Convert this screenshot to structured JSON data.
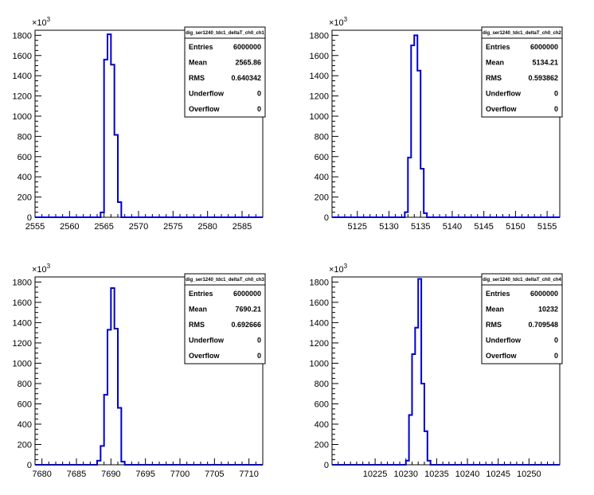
{
  "chart_data": [
    {
      "type": "bar",
      "name": "dig_ser1240_tdc1_deltaT_ch0_ch1",
      "bin_edges": [
        2564,
        2564.5,
        2565,
        2565.5,
        2566,
        2566.5,
        2567,
        2567.5
      ],
      "values": [
        0.2,
        48,
        1560,
        1810,
        1510,
        815,
        150
      ],
      "xlim": [
        2555,
        2588
      ],
      "ylim": [
        0,
        1850
      ],
      "x_ticks": [
        2555,
        2560,
        2565,
        2570,
        2575,
        2580,
        2585
      ],
      "y_ticks": [
        0,
        200,
        400,
        600,
        800,
        1000,
        1200,
        1400,
        1600,
        1800
      ],
      "y_multiplier": "×10",
      "y_multiplier_exp": "3",
      "stats": {
        "title": "dig_ser1240_tdc1_deltaT_ch0_ch1",
        "rows": [
          {
            "label": "Entries",
            "value": "6000000"
          },
          {
            "label": "Mean",
            "value": "2565.86"
          },
          {
            "label": "RMS",
            "value": "0.640342"
          },
          {
            "label": "Underflow",
            "value": "0"
          },
          {
            "label": "Overflow",
            "value": "0"
          }
        ]
      }
    },
    {
      "type": "bar",
      "name": "dig_ser1240_tdc1_deltaT_ch0_ch2",
      "bin_edges": [
        5132.5,
        5133,
        5133.5,
        5134,
        5134.5,
        5135,
        5135.5,
        5136
      ],
      "values": [
        50,
        590,
        1700,
        1800,
        1450,
        480,
        40
      ],
      "xlim": [
        5121,
        5157
      ],
      "ylim": [
        0,
        1850
      ],
      "x_ticks": [
        5125,
        5130,
        5135,
        5140,
        5145,
        5150,
        5155
      ],
      "y_ticks": [
        0,
        200,
        400,
        600,
        800,
        1000,
        1200,
        1400,
        1600,
        1800
      ],
      "y_multiplier": "×10",
      "y_multiplier_exp": "3",
      "stats": {
        "title": "dig_ser1240_tdc1_deltaT_ch0_ch2",
        "rows": [
          {
            "label": "Entries",
            "value": "6000000"
          },
          {
            "label": "Mean",
            "value": "5134.21"
          },
          {
            "label": "RMS",
            "value": "0.593862"
          },
          {
            "label": "Underflow",
            "value": "0"
          },
          {
            "label": "Overflow",
            "value": "0"
          }
        ]
      }
    },
    {
      "type": "bar",
      "name": "dig_ser1240_tdc1_deltaT_ch0_ch3",
      "bin_edges": [
        7688,
        7688.5,
        7689,
        7689.5,
        7690,
        7690.5,
        7691,
        7691.5,
        7692
      ],
      "values": [
        40,
        185,
        690,
        1330,
        1740,
        1340,
        560,
        30
      ],
      "xlim": [
        7679,
        7712
      ],
      "ylim": [
        0,
        1850
      ],
      "x_ticks": [
        7680,
        7685,
        7690,
        7695,
        7700,
        7705,
        7710
      ],
      "y_ticks": [
        0,
        200,
        400,
        600,
        800,
        1000,
        1200,
        1400,
        1600,
        1800
      ],
      "y_multiplier": "×10",
      "y_multiplier_exp": "3",
      "stats": {
        "title": "dig_ser1240_tdc1_deltaT_ch0_ch3",
        "rows": [
          {
            "label": "Entries",
            "value": "6000000"
          },
          {
            "label": "Mean",
            "value": "7690.21"
          },
          {
            "label": "RMS",
            "value": "0.692666"
          },
          {
            "label": "Underflow",
            "value": "0"
          },
          {
            "label": "Overflow",
            "value": "0"
          }
        ]
      }
    },
    {
      "type": "bar",
      "name": "dig_ser1240_tdc1_deltaT_ch0_ch4",
      "bin_edges": [
        10230,
        10230.5,
        10231,
        10231.5,
        10232,
        10232.5,
        10233,
        10233.5,
        10234
      ],
      "values": [
        40,
        490,
        1090,
        1350,
        1830,
        800,
        330,
        40
      ],
      "xlim": [
        10218,
        10255
      ],
      "ylim": [
        0,
        1850
      ],
      "x_ticks": [
        10225,
        10230,
        10235,
        10240,
        10245,
        10250
      ],
      "y_ticks": [
        0,
        200,
        400,
        600,
        800,
        1000,
        1200,
        1400,
        1600,
        1800
      ],
      "y_multiplier": "×10",
      "y_multiplier_exp": "3",
      "stats": {
        "title": "dig_ser1240_tdc1_deltaT_ch0_ch4",
        "rows": [
          {
            "label": "Entries",
            "value": "6000000"
          },
          {
            "label": "Mean",
            "value": "10232"
          },
          {
            "label": "RMS",
            "value": "0.709548"
          },
          {
            "label": "Underflow",
            "value": "0"
          },
          {
            "label": "Overflow",
            "value": "0"
          }
        ]
      }
    }
  ]
}
